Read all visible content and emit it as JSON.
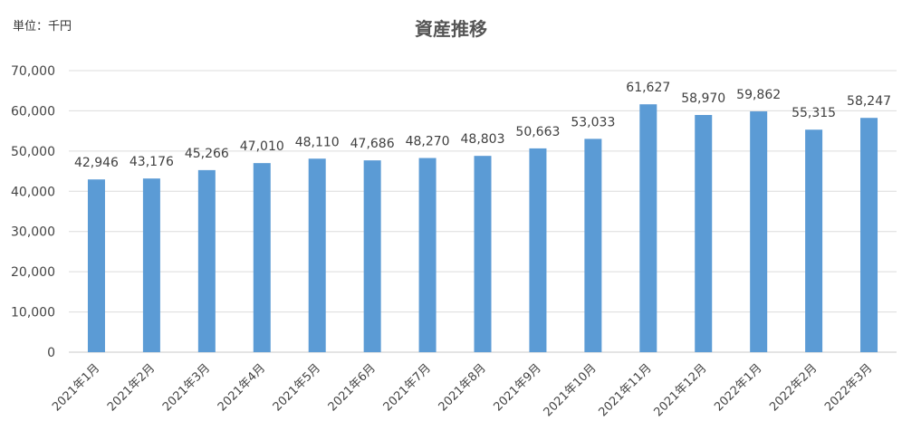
{
  "chart_data": {
    "type": "bar",
    "title": "資産推移",
    "unit_label": "単位：千円",
    "categories": [
      "2021年1月",
      "2021年2月",
      "2021年3月",
      "2021年4月",
      "2021年5月",
      "2021年6月",
      "2021年7月",
      "2021年8月",
      "2021年9月",
      "2021年10月",
      "2021年11月",
      "2021年12月",
      "2022年1月",
      "2022年2月",
      "2022年3月"
    ],
    "values": [
      42946,
      43176,
      45266,
      47010,
      48110,
      47686,
      48270,
      48803,
      50663,
      53033,
      61627,
      58970,
      59862,
      55315,
      58247
    ],
    "value_labels": [
      "42,946",
      "43,176",
      "45,266",
      "47,010",
      "48,110",
      "47,686",
      "48,270",
      "48,803",
      "50,663",
      "53,033",
      "61,627",
      "58,970",
      "59,862",
      "55,315",
      "58,247"
    ],
    "y_ticks": [
      "0",
      "10,000",
      "20,000",
      "30,000",
      "40,000",
      "50,000",
      "60,000",
      "70,000"
    ],
    "ylim": [
      0,
      70000
    ],
    "grid": true,
    "legend": "none",
    "bar_color": "#5B9BD5"
  }
}
